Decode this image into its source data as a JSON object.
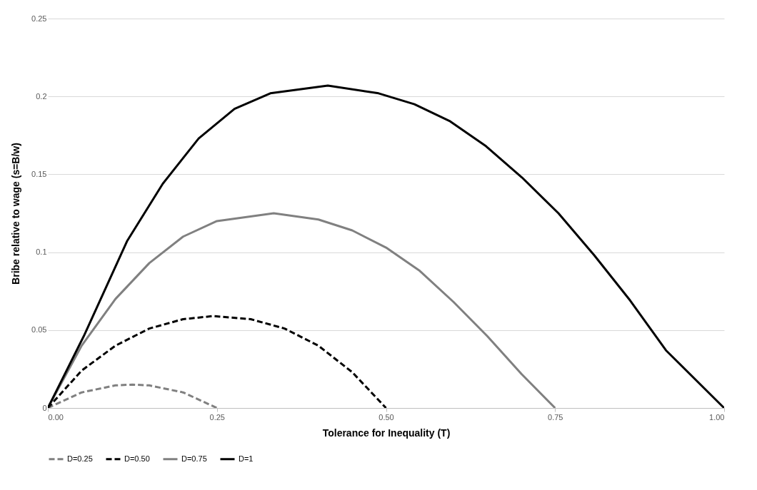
{
  "chart_data": {
    "type": "line",
    "xlabel": "Tolerance  for Inequality (T)",
    "ylabel": "Bribe relative to wage (s=B/w)",
    "xlim": [
      0,
      1
    ],
    "xticks": [
      {
        "value": 0,
        "label": "0.00"
      },
      {
        "value": 0.25,
        "label": "0.25"
      },
      {
        "value": 0.5,
        "label": "0.50"
      },
      {
        "value": 0.75,
        "label": "0.75"
      },
      {
        "value": 1,
        "label": "1.00"
      }
    ],
    "ylim": [
      0,
      0.25
    ],
    "yticks": [
      0,
      0.05,
      0.1,
      0.15,
      0.2,
      0.25
    ],
    "grid": "y",
    "legend": "bottom",
    "marker": "none",
    "series": [
      {
        "name": "D=0.25",
        "color": "#808080",
        "line_style": "dashed",
        "x": [
          0,
          0.05,
          0.1,
          0.125,
          0.15,
          0.2,
          0.25
        ],
        "values": [
          0,
          0.01,
          0.0145,
          0.015,
          0.0145,
          0.01,
          0
        ]
      },
      {
        "name": "D=0.50",
        "color": "#000000",
        "line_style": "dashed",
        "x": [
          0,
          0.05,
          0.1,
          0.15,
          0.2,
          0.244,
          0.3,
          0.35,
          0.4,
          0.45,
          0.5
        ],
        "values": [
          0,
          0.024,
          0.04,
          0.051,
          0.057,
          0.059,
          0.057,
          0.051,
          0.04,
          0.023,
          0
        ]
      },
      {
        "name": "D=0.75",
        "color": "#808080",
        "line_style": "solid",
        "x": [
          0,
          0.05,
          0.1,
          0.15,
          0.2,
          0.25,
          0.334,
          0.4,
          0.45,
          0.5,
          0.55,
          0.6,
          0.65,
          0.7,
          0.75
        ],
        "values": [
          0,
          0.04,
          0.07,
          0.093,
          0.11,
          0.12,
          0.125,
          0.121,
          0.114,
          0.103,
          0.088,
          0.068,
          0.046,
          0.022,
          0
        ]
      },
      {
        "name": "D=1",
        "color": "#000000",
        "line_style": "solid",
        "x": [
          0,
          0.053,
          0.117,
          0.17,
          0.223,
          0.276,
          0.329,
          0.414,
          0.489,
          0.542,
          0.595,
          0.648,
          0.701,
          0.755,
          0.808,
          0.861,
          0.914,
          1
        ],
        "values": [
          0,
          0.046,
          0.107,
          0.144,
          0.173,
          0.192,
          0.202,
          0.207,
          0.202,
          0.195,
          0.184,
          0.168,
          0.148,
          0.125,
          0.098,
          0.069,
          0.037,
          0
        ]
      }
    ]
  }
}
